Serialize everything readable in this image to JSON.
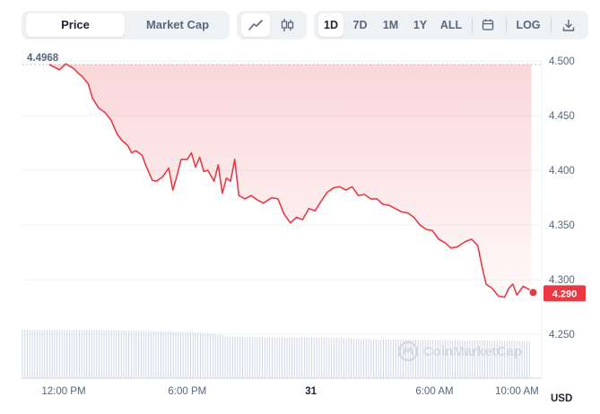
{
  "tabs": {
    "price": "Price",
    "market_cap": "Market Cap",
    "active": "price"
  },
  "chart_type_icons": [
    "line-chart-icon",
    "candlestick-icon"
  ],
  "ranges": [
    "1D",
    "7D",
    "1M",
    "1Y",
    "ALL"
  ],
  "active_range": "1D",
  "calendar_icon": "calendar-icon",
  "log_label": "LOG",
  "download_icon": "download-icon",
  "currency": "USD",
  "watermark": "CoinMarketCap",
  "colors": {
    "line": "#ea3943",
    "tag": "#ea3943",
    "volume": "#cfd6e4",
    "text": "#58667e"
  },
  "chart_data": {
    "type": "area",
    "open_label": "4.4968",
    "last_label": "4.290",
    "open_value": 4.4968,
    "last_value": 4.29,
    "ylim": [
      4.21,
      4.505
    ],
    "y_ticks": [
      4.25,
      4.3,
      4.35,
      4.4,
      4.45,
      4.5
    ],
    "y_tick_labels": [
      "4.250",
      "4.300",
      "4.350",
      "4.400",
      "4.450",
      "4.500"
    ],
    "x_ticks": [
      {
        "label": "12:00 PM",
        "t": 0.5
      },
      {
        "label": "6:00 PM",
        "t": 6.5
      },
      {
        "label": "31",
        "t": 12.5
      },
      {
        "label": "6:00 AM",
        "t": 18.5
      },
      {
        "label": "10:00 AM",
        "t": 22.5
      }
    ],
    "x_range": [
      -1.5,
      23.7
    ],
    "prices": [
      [
        -0.2,
        4.4968
      ],
      [
        0.3,
        4.492
      ],
      [
        0.6,
        4.4975
      ],
      [
        1.0,
        4.493
      ],
      [
        1.2,
        4.489
      ],
      [
        1.4,
        4.486
      ],
      [
        1.7,
        4.479
      ],
      [
        1.9,
        4.466
      ],
      [
        2.2,
        4.457
      ],
      [
        2.5,
        4.453
      ],
      [
        2.8,
        4.446
      ],
      [
        3.1,
        4.433
      ],
      [
        3.3,
        4.428
      ],
      [
        3.6,
        4.423
      ],
      [
        3.8,
        4.416
      ],
      [
        4.0,
        4.418
      ],
      [
        4.3,
        4.414
      ],
      [
        4.5,
        4.404
      ],
      [
        4.8,
        4.391
      ],
      [
        5.0,
        4.39
      ],
      [
        5.3,
        4.394
      ],
      [
        5.6,
        4.402
      ],
      [
        5.8,
        4.382
      ],
      [
        6.0,
        4.395
      ],
      [
        6.2,
        4.41
      ],
      [
        6.5,
        4.41
      ],
      [
        6.7,
        4.416
      ],
      [
        6.9,
        4.403
      ],
      [
        7.1,
        4.412
      ],
      [
        7.3,
        4.399
      ],
      [
        7.5,
        4.4
      ],
      [
        7.8,
        4.39
      ],
      [
        8.0,
        4.405
      ],
      [
        8.2,
        4.379
      ],
      [
        8.4,
        4.393
      ],
      [
        8.6,
        4.39
      ],
      [
        8.8,
        4.41
      ],
      [
        9.0,
        4.377
      ],
      [
        9.3,
        4.374
      ],
      [
        9.6,
        4.377
      ],
      [
        9.9,
        4.373
      ],
      [
        10.2,
        4.37
      ],
      [
        10.6,
        4.375
      ],
      [
        10.9,
        4.374
      ],
      [
        11.2,
        4.36
      ],
      [
        11.5,
        4.352
      ],
      [
        11.8,
        4.357
      ],
      [
        12.1,
        4.355
      ],
      [
        12.4,
        4.365
      ],
      [
        12.7,
        4.363
      ],
      [
        13.0,
        4.372
      ],
      [
        13.3,
        4.38
      ],
      [
        13.6,
        4.384
      ],
      [
        13.9,
        4.385
      ],
      [
        14.2,
        4.382
      ],
      [
        14.5,
        4.385
      ],
      [
        14.8,
        4.377
      ],
      [
        15.1,
        4.378
      ],
      [
        15.4,
        4.374
      ],
      [
        15.7,
        4.374
      ],
      [
        16.0,
        4.369
      ],
      [
        16.3,
        4.368
      ],
      [
        16.6,
        4.365
      ],
      [
        16.9,
        4.362
      ],
      [
        17.2,
        4.361
      ],
      [
        17.5,
        4.357
      ],
      [
        17.8,
        4.35
      ],
      [
        18.1,
        4.346
      ],
      [
        18.4,
        4.345
      ],
      [
        18.7,
        4.337
      ],
      [
        19.0,
        4.334
      ],
      [
        19.3,
        4.329
      ],
      [
        19.6,
        4.33
      ],
      [
        20.0,
        4.335
      ],
      [
        20.3,
        4.337
      ],
      [
        20.6,
        4.331
      ],
      [
        20.8,
        4.312
      ],
      [
        21.0,
        4.296
      ],
      [
        21.3,
        4.292
      ],
      [
        21.6,
        4.285
      ],
      [
        21.9,
        4.284
      ],
      [
        22.1,
        4.292
      ],
      [
        22.3,
        4.296
      ],
      [
        22.5,
        4.286
      ],
      [
        22.8,
        4.294
      ],
      [
        23.2,
        4.29
      ]
    ],
    "volume": [
      [
        -1.5,
        0.95
      ],
      [
        2.5,
        0.95
      ],
      [
        3.5,
        0.93
      ],
      [
        5.0,
        0.92
      ],
      [
        6.5,
        0.91
      ],
      [
        7.8,
        0.88
      ],
      [
        8.5,
        0.82
      ],
      [
        10.5,
        0.8
      ],
      [
        13.0,
        0.8
      ],
      [
        15.0,
        0.77
      ],
      [
        16.5,
        0.76
      ],
      [
        18.5,
        0.75
      ],
      [
        20.5,
        0.74
      ],
      [
        23.2,
        0.73
      ]
    ]
  }
}
